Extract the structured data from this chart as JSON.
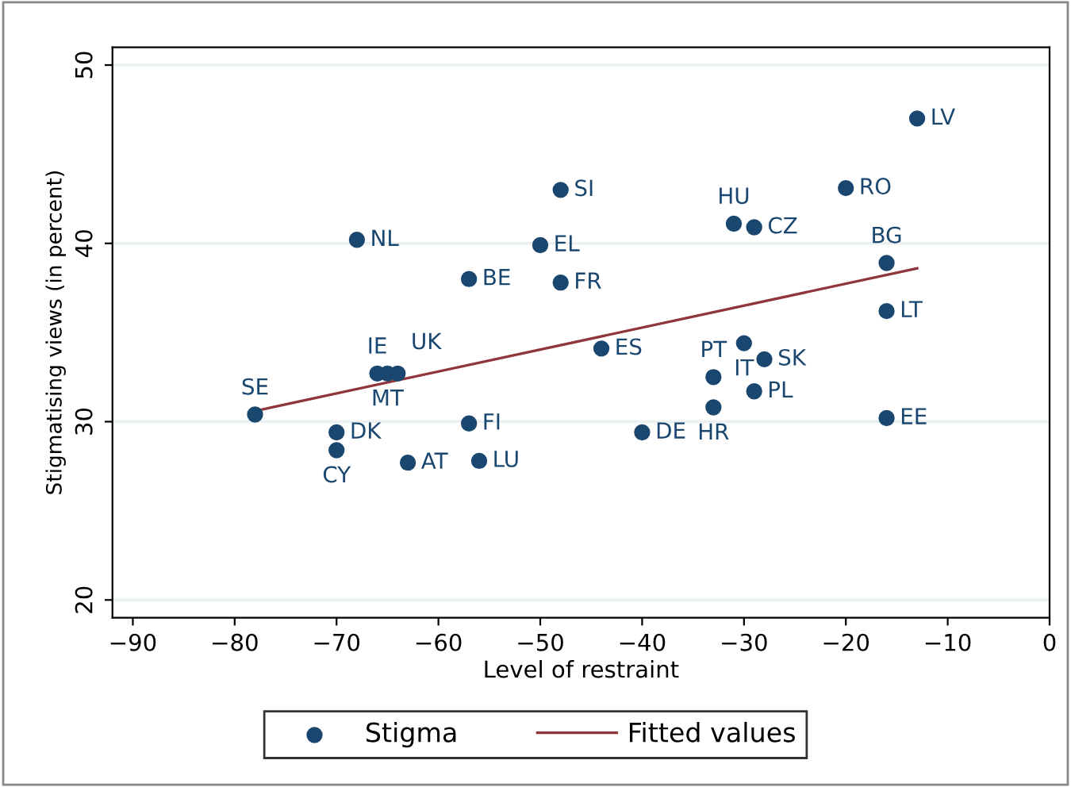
{
  "chart_data": {
    "type": "scatter",
    "xlabel": "Level of restraint",
    "ylabel": "Stigmatising views (in percent)",
    "xlim": [
      -92,
      0
    ],
    "ylim": [
      19,
      51
    ],
    "xticks": [
      -90,
      -80,
      -70,
      -60,
      -50,
      -40,
      -30,
      -20,
      -10,
      0
    ],
    "yticks": [
      20,
      30,
      40,
      50
    ],
    "grid": "y",
    "legend": "bottom",
    "marker": "circle",
    "series": [
      {
        "name": "Stigma",
        "color": "#1a476f",
        "x": [
          -78,
          -70,
          -70,
          -63,
          -57,
          -56,
          -40,
          -68,
          -48,
          -50,
          -57,
          -48,
          -44,
          -66,
          -65,
          -64,
          -13,
          -20,
          -31,
          -29,
          -16,
          -16,
          -30,
          -28,
          -33,
          -29,
          -33,
          -16
        ],
        "values": [
          30.4,
          29.4,
          28.4,
          27.7,
          29.9,
          27.8,
          29.4,
          40.2,
          43.0,
          39.9,
          38.0,
          37.8,
          34.1,
          32.7,
          32.7,
          32.7,
          47.0,
          43.1,
          41.1,
          40.9,
          38.9,
          36.2,
          34.4,
          33.5,
          32.5,
          31.7,
          30.8,
          30.2
        ]
      },
      {
        "name": "Fitted values",
        "type": "line",
        "color": "#90353b",
        "marker": "none",
        "x": [
          -78,
          -13
        ],
        "values": [
          30.6,
          38.6
        ]
      }
    ],
    "annotations": [
      {
        "text": "SE",
        "x": -78,
        "y": 30.4
      },
      {
        "text": "DK",
        "x": -70,
        "y": 29.4
      },
      {
        "text": "CY",
        "x": -70,
        "y": 28.4
      },
      {
        "text": "AT",
        "x": -63,
        "y": 27.7
      },
      {
        "text": "FI",
        "x": -57,
        "y": 29.9
      },
      {
        "text": "LU",
        "x": -56,
        "y": 27.8
      },
      {
        "text": "DE",
        "x": -40,
        "y": 29.4
      },
      {
        "text": "NL",
        "x": -68,
        "y": 40.2
      },
      {
        "text": "SI",
        "x": -48,
        "y": 43.0
      },
      {
        "text": "EL",
        "x": -50,
        "y": 39.9
      },
      {
        "text": "BE",
        "x": -57,
        "y": 38.0
      },
      {
        "text": "FR",
        "x": -48,
        "y": 37.8
      },
      {
        "text": "ES",
        "x": -44,
        "y": 34.1
      },
      {
        "text": "IE",
        "x": -66,
        "y": 32.7
      },
      {
        "text": "MT",
        "x": -65,
        "y": 32.7
      },
      {
        "text": "UK",
        "x": -64,
        "y": 32.7
      },
      {
        "text": "LV",
        "x": -13,
        "y": 47.0
      },
      {
        "text": "RO",
        "x": -20,
        "y": 43.1
      },
      {
        "text": "HU",
        "x": -31,
        "y": 41.1
      },
      {
        "text": "CZ",
        "x": -29,
        "y": 40.9
      },
      {
        "text": "BG",
        "x": -16,
        "y": 38.9
      },
      {
        "text": "LT",
        "x": -16,
        "y": 36.2
      },
      {
        "text": "IT",
        "x": -30,
        "y": 34.4
      },
      {
        "text": "SK",
        "x": -28,
        "y": 33.5
      },
      {
        "text": "PT",
        "x": -33,
        "y": 32.5
      },
      {
        "text": "PL",
        "x": -29,
        "y": 31.7
      },
      {
        "text": "HR",
        "x": -33,
        "y": 30.8
      },
      {
        "text": "EE",
        "x": -16,
        "y": 30.2
      }
    ]
  }
}
